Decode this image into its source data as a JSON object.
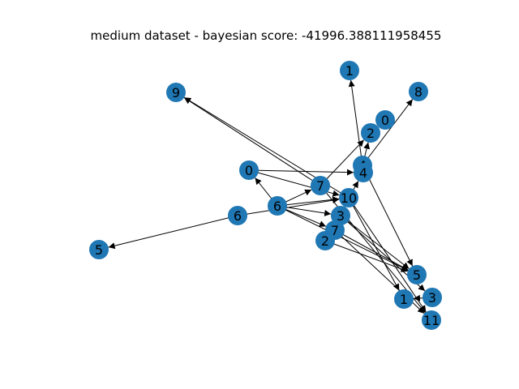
{
  "title": "medium dataset - bayesian score: -41996.388111958455",
  "graph": {
    "nodes": [
      {
        "id": "n1a",
        "label": "1"
      },
      {
        "id": "n8",
        "label": "8"
      },
      {
        "id": "n9",
        "label": "9"
      },
      {
        "id": "n0a",
        "label": "0"
      },
      {
        "id": "n2a",
        "label": "2"
      },
      {
        "id": "n0b",
        "label": "0"
      },
      {
        "id": "n4a",
        "label": "4"
      },
      {
        "id": "n4b",
        "label": "4"
      },
      {
        "id": "n7a",
        "label": "7"
      },
      {
        "id": "n10",
        "label": "10"
      },
      {
        "id": "n6a",
        "label": "6"
      },
      {
        "id": "n6b",
        "label": "6"
      },
      {
        "id": "n3a",
        "label": "3"
      },
      {
        "id": "n7b",
        "label": "7"
      },
      {
        "id": "n2b",
        "label": "2"
      },
      {
        "id": "n5a",
        "label": "5"
      },
      {
        "id": "n5b",
        "label": "5"
      },
      {
        "id": "n3b",
        "label": "3"
      },
      {
        "id": "n1b",
        "label": "1"
      },
      {
        "id": "n11",
        "label": "11"
      }
    ],
    "edges": [
      {
        "from": "n0b",
        "to": "n4b"
      },
      {
        "from": "n0b",
        "to": "n10"
      },
      {
        "from": "n4a",
        "to": "n1a"
      },
      {
        "from": "n4a",
        "to": "n2a"
      },
      {
        "from": "n4a",
        "to": "n8"
      },
      {
        "from": "n4a",
        "to": "n5b"
      },
      {
        "from": "n7a",
        "to": "n2a"
      },
      {
        "from": "n7a",
        "to": "n9"
      },
      {
        "from": "n7a",
        "to": "n11"
      },
      {
        "from": "n6a",
        "to": "n0b"
      },
      {
        "from": "n6a",
        "to": "n7a"
      },
      {
        "from": "n6a",
        "to": "n10"
      },
      {
        "from": "n6a",
        "to": "n3a"
      },
      {
        "from": "n6a",
        "to": "n7b"
      },
      {
        "from": "n6a",
        "to": "n5b"
      },
      {
        "from": "n6b",
        "to": "n5a"
      },
      {
        "from": "n6b",
        "to": "n10"
      },
      {
        "from": "n10",
        "to": "n9"
      },
      {
        "from": "n10",
        "to": "n4b"
      },
      {
        "from": "n10",
        "to": "n1b"
      },
      {
        "from": "n10",
        "to": "n11"
      },
      {
        "from": "n3a",
        "to": "n10"
      },
      {
        "from": "n3a",
        "to": "n5b"
      },
      {
        "from": "n3a",
        "to": "n3b"
      },
      {
        "from": "n7b",
        "to": "n5b"
      },
      {
        "from": "n7b",
        "to": "n11"
      },
      {
        "from": "n2b",
        "to": "n5b"
      },
      {
        "from": "n3b",
        "to": "n1b"
      }
    ]
  },
  "colors": {
    "node": "#1f77b4",
    "edge": "#000000",
    "background": "#ffffff"
  }
}
